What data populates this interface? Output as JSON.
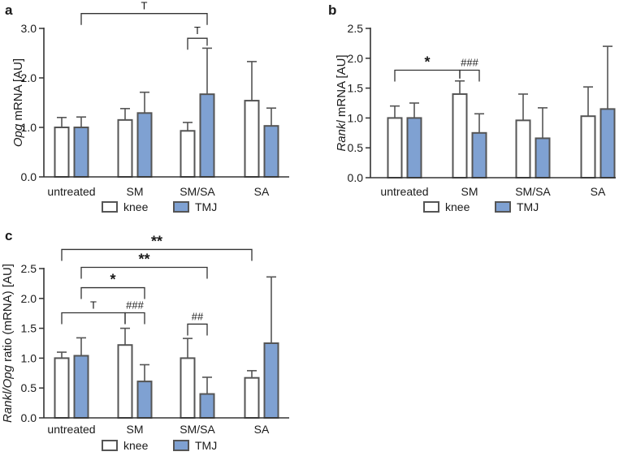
{
  "colors": {
    "knee": "#ffffff",
    "tmj": "#7fa1d2",
    "edge": "#555555",
    "axis": "#333333",
    "text": "#1a1a1a"
  },
  "legend": {
    "knee": "knee",
    "tmj": "TMJ"
  },
  "chart_data": [
    {
      "panel": "a",
      "type": "bar",
      "ylabel_italic": "Opg",
      "ylabel_rest": " mRNA [AU]",
      "categories": [
        "untreated",
        "SM",
        "SM/SA",
        "SA"
      ],
      "ylim": [
        0,
        3.0
      ],
      "ticks": [
        "0.0",
        "1.0",
        "2.0",
        "3.0"
      ],
      "tick_values": [
        0,
        1,
        2,
        3
      ],
      "series": [
        {
          "name": "knee",
          "values": [
            1.0,
            1.15,
            0.93,
            1.54
          ],
          "errors": [
            0.2,
            0.23,
            0.17,
            0.79
          ]
        },
        {
          "name": "TMJ",
          "values": [
            1.0,
            1.29,
            1.67,
            1.03
          ],
          "errors": [
            0.21,
            0.42,
            0.93,
            0.36
          ]
        }
      ],
      "annotations": [
        {
          "label": "T",
          "from": [
            0,
            1
          ],
          "to": [
            2,
            1
          ],
          "level": 3.3
        },
        {
          "label": "T",
          "from": [
            2,
            0
          ],
          "to": [
            2,
            1
          ],
          "level": 2.8
        }
      ]
    },
    {
      "panel": "b",
      "type": "bar",
      "ylabel_italic": "Rankl",
      "ylabel_rest": " mRNA [AU]",
      "categories": [
        "untreated",
        "SM",
        "SM/SA",
        "SA"
      ],
      "ylim": [
        0,
        2.5
      ],
      "ticks": [
        "0.0",
        "0.5",
        "1.0",
        "1.5",
        "2.0",
        "2.5"
      ],
      "tick_values": [
        0,
        0.5,
        1,
        1.5,
        2,
        2.5
      ],
      "series": [
        {
          "name": "knee",
          "values": [
            1.0,
            1.4,
            0.96,
            1.03
          ],
          "errors": [
            0.2,
            0.22,
            0.44,
            0.49
          ]
        },
        {
          "name": "TMJ",
          "values": [
            1.0,
            0.75,
            0.66,
            1.15
          ],
          "errors": [
            0.25,
            0.32,
            0.51,
            1.05
          ]
        }
      ],
      "annotations": [
        {
          "label": "*",
          "from": [
            0,
            0
          ],
          "to": [
            1,
            0
          ],
          "level": 1.8,
          "bold": true
        },
        {
          "label": "###",
          "from": [
            1,
            0
          ],
          "to": [
            1,
            1
          ],
          "level": 1.8
        }
      ]
    },
    {
      "panel": "c",
      "type": "bar",
      "ylabel_italic": "Rankl/Opg",
      "ylabel_rest": " ratio (mRNA) [AU]",
      "categories": [
        "untreated",
        "SM",
        "SM/SA",
        "SA"
      ],
      "ylim": [
        0,
        2.5
      ],
      "ticks": [
        "0.0",
        "0.5",
        "1.0",
        "1.5",
        "2.0",
        "2.5"
      ],
      "tick_values": [
        0,
        0.5,
        1,
        1.5,
        2,
        2.5
      ],
      "series": [
        {
          "name": "knee",
          "values": [
            1.0,
            1.22,
            1.0,
            0.67
          ],
          "errors": [
            0.1,
            0.28,
            0.33,
            0.12
          ]
        },
        {
          "name": "TMJ",
          "values": [
            1.04,
            0.61,
            0.4,
            1.25
          ],
          "errors": [
            0.3,
            0.28,
            0.28,
            1.11
          ]
        }
      ],
      "annotations": [
        {
          "label": "**",
          "from": [
            0,
            0
          ],
          "to": [
            3,
            0
          ],
          "level": 2.82,
          "bold": true
        },
        {
          "label": "**",
          "from": [
            0,
            1
          ],
          "to": [
            2,
            1
          ],
          "level": 2.52,
          "bold": true
        },
        {
          "label": "*",
          "from": [
            0,
            1
          ],
          "to": [
            1,
            1
          ],
          "level": 2.18,
          "bold": true
        },
        {
          "label": "T",
          "from": [
            0,
            0
          ],
          "to": [
            1,
            0
          ],
          "level": 1.76
        },
        {
          "label": "###",
          "from": [
            1,
            0
          ],
          "to": [
            1,
            1
          ],
          "level": 1.76
        },
        {
          "label": "##",
          "from": [
            2,
            0
          ],
          "to": [
            2,
            1
          ],
          "level": 1.57
        }
      ]
    }
  ]
}
